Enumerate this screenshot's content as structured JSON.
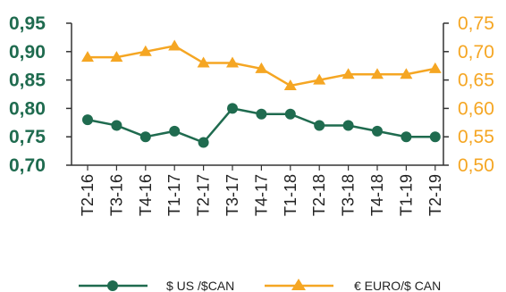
{
  "chart_data": {
    "type": "line",
    "categories": [
      "T2-16",
      "T3-16",
      "T4-16",
      "T1-17",
      "T2-17",
      "T3-17",
      "T4-17",
      "T1-18",
      "T2-18",
      "T3-18",
      "T4-18",
      "T1-19",
      "T2-19"
    ],
    "series": [
      {
        "name": "$ US /$CAN",
        "axis": "left",
        "marker": "circle",
        "color": "#1f6b4f",
        "values": [
          0.78,
          0.77,
          0.75,
          0.76,
          0.74,
          0.8,
          0.79,
          0.79,
          0.77,
          0.77,
          0.76,
          0.75,
          0.75
        ]
      },
      {
        "name": "€ EURO/$ CAN",
        "axis": "right",
        "marker": "triangle",
        "color": "#f5a623",
        "values": [
          0.69,
          0.69,
          0.7,
          0.71,
          0.68,
          0.68,
          0.67,
          0.64,
          0.65,
          0.66,
          0.66,
          0.66,
          0.67
        ]
      }
    ],
    "yleft": {
      "lim": [
        0.7,
        0.95
      ],
      "ticks": [
        "0,70",
        "0,75",
        "0,80",
        "0,85",
        "0,90",
        "0,95"
      ]
    },
    "yright": {
      "lim": [
        0.5,
        0.75
      ],
      "ticks": [
        "0,50",
        "0,55",
        "0,60",
        "0,65",
        "0,70",
        "0,75"
      ]
    },
    "grid": false,
    "legend_position": "bottom"
  }
}
